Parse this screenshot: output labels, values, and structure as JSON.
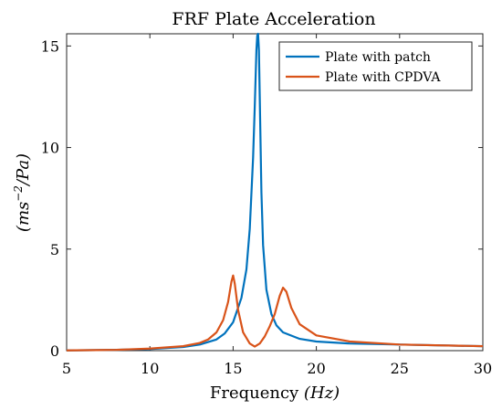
{
  "chart_data": {
    "type": "line",
    "title": "FRF Plate Acceleration",
    "xlabel": "Frequency (Hz)",
    "xlabel_text": "Frequency ",
    "xlabel_unit": "(Hz)",
    "ylabel": "(ms^-2/Pa)",
    "xlim": [
      5,
      30
    ],
    "ylim": [
      0,
      15.6
    ],
    "xticks": [
      5,
      10,
      15,
      20,
      25,
      30
    ],
    "yticks": [
      0,
      5,
      10,
      15
    ],
    "grid": false,
    "legend_position": "top-right",
    "series": [
      {
        "name": "Plate with patch",
        "color": "#0072BD",
        "x": [
          5,
          8,
          10,
          12,
          13,
          14,
          14.5,
          15,
          15.5,
          15.8,
          16,
          16.2,
          16.3,
          16.4,
          16.45,
          16.5,
          16.55,
          16.6,
          16.7,
          16.8,
          17,
          17.3,
          17.6,
          18,
          19,
          20,
          22,
          25,
          30
        ],
        "y": [
          0.01,
          0.04,
          0.08,
          0.18,
          0.3,
          0.55,
          0.85,
          1.4,
          2.6,
          4.0,
          6.0,
          9.5,
          12.0,
          14.8,
          15.5,
          15.6,
          14.8,
          12.5,
          7.8,
          5.2,
          3.0,
          1.8,
          1.25,
          0.9,
          0.58,
          0.45,
          0.35,
          0.3,
          0.22
        ]
      },
      {
        "name": "Plate with CPDVA",
        "color": "#D95319",
        "x": [
          5,
          8,
          10,
          12,
          13,
          13.5,
          14,
          14.4,
          14.7,
          14.9,
          15,
          15.1,
          15.3,
          15.6,
          16,
          16.3,
          16.6,
          16.9,
          17.2,
          17.5,
          17.8,
          18,
          18.2,
          18.5,
          19,
          20,
          22,
          25,
          30
        ],
        "y": [
          0.01,
          0.04,
          0.1,
          0.22,
          0.38,
          0.55,
          0.9,
          1.5,
          2.4,
          3.4,
          3.7,
          3.3,
          2.0,
          0.9,
          0.35,
          0.2,
          0.35,
          0.7,
          1.2,
          1.8,
          2.7,
          3.1,
          2.9,
          2.1,
          1.3,
          0.75,
          0.45,
          0.3,
          0.22
        ]
      }
    ]
  }
}
